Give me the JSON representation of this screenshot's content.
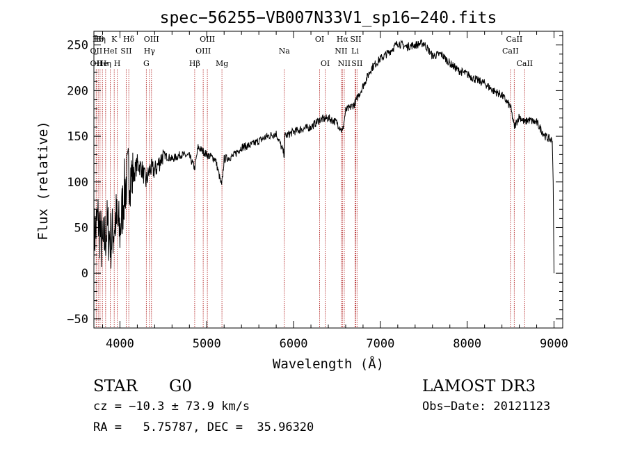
{
  "chart_data": {
    "type": "line",
    "title": "spec−56255−VB007N33V1_sp16−240.fits",
    "xlabel": "Wavelength (Å)",
    "ylabel": "Flux (relative)",
    "xlim": [
      3700,
      9100
    ],
    "ylim": [
      -60,
      265
    ],
    "xticks": [
      4000,
      5000,
      6000,
      7000,
      8000,
      9000
    ],
    "yticks": [
      -50,
      0,
      50,
      100,
      150,
      200,
      250
    ],
    "ytick_labels": [
      "−50",
      "0",
      "50",
      "100",
      "150",
      "200",
      "250"
    ],
    "series": [
      {
        "name": "flux",
        "x": [
          3700,
          3750,
          3800,
          3850,
          3900,
          3950,
          4000,
          4050,
          4100,
          4150,
          4200,
          4250,
          4300,
          4350,
          4400,
          4500,
          4600,
          4700,
          4800,
          4861,
          4900,
          5000,
          5100,
          5172,
          5200,
          5300,
          5400,
          5500,
          5600,
          5700,
          5800,
          5893,
          5900,
          6000,
          6100,
          6200,
          6300,
          6400,
          6500,
          6563,
          6600,
          6700,
          6800,
          6900,
          7000,
          7100,
          7200,
          7300,
          7400,
          7500,
          7600,
          7700,
          7800,
          7900,
          8000,
          8100,
          8200,
          8300,
          8400,
          8500,
          8542,
          8600,
          8662,
          8700,
          8800,
          8900,
          8980,
          8990,
          9000
        ],
        "y": [
          40,
          60,
          25,
          50,
          35,
          60,
          45,
          90,
          110,
          105,
          120,
          115,
          100,
          115,
          112,
          130,
          125,
          130,
          128,
          115,
          138,
          130,
          125,
          95,
          125,
          128,
          138,
          140,
          145,
          150,
          153,
          130,
          150,
          155,
          158,
          160,
          168,
          170,
          165,
          155,
          178,
          185,
          205,
          225,
          235,
          242,
          252,
          248,
          250,
          252,
          238,
          240,
          230,
          222,
          218,
          212,
          208,
          200,
          195,
          182,
          160,
          172,
          165,
          168,
          165,
          150,
          145,
          100,
          0
        ]
      }
    ],
    "line_markers": [
      {
        "wavelength": 3727,
        "label": "OII",
        "row": 2
      },
      {
        "wavelength": 3727,
        "label": "OII",
        "row": 3
      },
      {
        "wavelength": 3750,
        "label": "Hθ",
        "row": 1
      },
      {
        "wavelength": 3771,
        "label": "Hη",
        "row": 1
      },
      {
        "wavelength": 3798,
        "label": "He",
        "row": 3
      },
      {
        "wavelength": 3835,
        "label": "Hη",
        "row": 3
      },
      {
        "wavelength": 3889,
        "label": "HeI",
        "row": 2
      },
      {
        "wavelength": 3934,
        "label": "K",
        "row": 1
      },
      {
        "wavelength": 3969,
        "label": "H",
        "row": 3
      },
      {
        "wavelength": 4072,
        "label": "SII",
        "row": 2
      },
      {
        "wavelength": 4102,
        "label": "Hδ",
        "row": 1
      },
      {
        "wavelength": 4304,
        "label": "G",
        "row": 3
      },
      {
        "wavelength": 4340,
        "label": "Hγ",
        "row": 2
      },
      {
        "wavelength": 4363,
        "label": "OIII",
        "row": 1
      },
      {
        "wavelength": 4861,
        "label": "Hβ",
        "row": 3
      },
      {
        "wavelength": 4959,
        "label": "OIII",
        "row": 2
      },
      {
        "wavelength": 5007,
        "label": "OIII",
        "row": 1
      },
      {
        "wavelength": 5175,
        "label": "Mg",
        "row": 3
      },
      {
        "wavelength": 5893,
        "label": "Na",
        "row": 2
      },
      {
        "wavelength": 6300,
        "label": "OI",
        "row": 1
      },
      {
        "wavelength": 6364,
        "label": "OI",
        "row": 3
      },
      {
        "wavelength": 6548,
        "label": "NII",
        "row": 2
      },
      {
        "wavelength": 6563,
        "label": "Hα",
        "row": 1
      },
      {
        "wavelength": 6584,
        "label": "NII",
        "row": 3
      },
      {
        "wavelength": 6708,
        "label": "Li",
        "row": 2
      },
      {
        "wavelength": 6716,
        "label": "SII",
        "row": 1
      },
      {
        "wavelength": 6731,
        "label": "SII",
        "row": 3
      },
      {
        "wavelength": 8498,
        "label": "CaII",
        "row": 2
      },
      {
        "wavelength": 8542,
        "label": "CaII",
        "row": 1
      },
      {
        "wavelength": 8662,
        "label": "CaII",
        "row": 3
      }
    ],
    "colors": {
      "spectrum": "#000000",
      "markers": "#b22222",
      "text": "#000000"
    }
  },
  "info": {
    "class_label": "STAR",
    "subclass": "G0",
    "survey": "LAMOST DR3",
    "cz": "cz = −10.3 ± 73.9 km/s",
    "obs_date": "Obs−Date: 20121123",
    "coords": "RA =   5.75787, DEC =  35.96320"
  }
}
